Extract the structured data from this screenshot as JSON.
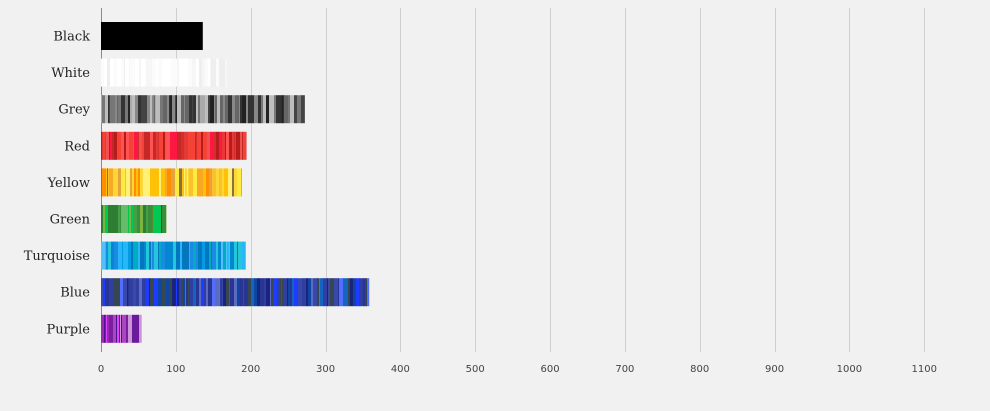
{
  "chart_data": {
    "type": "bar",
    "orientation": "horizontal",
    "categories": [
      "Black",
      "White",
      "Grey",
      "Red",
      "Yellow",
      "Green",
      "Turquoise",
      "Blue",
      "Purple"
    ],
    "values": [
      136,
      168,
      272,
      194,
      188,
      87,
      193,
      358,
      54
    ],
    "x_ticks": [
      0,
      100,
      200,
      300,
      400,
      500,
      600,
      700,
      800,
      900,
      1000,
      1100
    ],
    "xlim": [
      0,
      1150
    ],
    "grid": "vertical",
    "palettes": {
      "Black": [
        "#000000"
      ],
      "White": [
        "#ffffff",
        "#fbfbfb",
        "#f6f6f6",
        "#eeeeee",
        "#ffffff"
      ],
      "Grey": [
        "#222222",
        "#444444",
        "#666666",
        "#888888",
        "#aaaaaa",
        "#bdbdbd",
        "#777777",
        "#333333"
      ],
      "Red": [
        "#b71c1c",
        "#d32f2f",
        "#e53935",
        "#f44336",
        "#ff5252",
        "#c62828",
        "#ff1744",
        "#ef5350"
      ],
      "Yellow": [
        "#fdd835",
        "#ffeb3b",
        "#fbc02d",
        "#f9a825",
        "#ffc107",
        "#ff8f00",
        "#8d6e3f",
        "#fff176",
        "#e6a23c"
      ],
      "Green": [
        "#2e7d32",
        "#388e3c",
        "#43a047",
        "#7cb342",
        "#558b2f",
        "#1b5e20",
        "#00c853",
        "#66bb6a"
      ],
      "Turquoise": [
        "#0288d1",
        "#039be5",
        "#29b6f6",
        "#00acc1",
        "#4fc3f7",
        "#0277bd",
        "#26c6da",
        "#1e88e5"
      ],
      "Blue": [
        "#1a237e",
        "#283593",
        "#303f9f",
        "#3949ab",
        "#1e3cff",
        "#5c6bc0",
        "#1565c0",
        "#37474f",
        "#0d47a1",
        "#536dfe"
      ],
      "Purple": [
        "#4a148c",
        "#7b1fa2",
        "#9c27b0",
        "#e040fb",
        "#ab47bc",
        "#ce93d8",
        "#6a1b9a"
      ]
    }
  }
}
